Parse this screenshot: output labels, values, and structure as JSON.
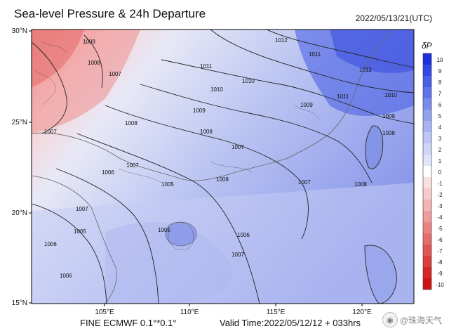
{
  "header": {
    "title": "Sea-level Pressure & 24h Departure",
    "timestamp": "2022/05/13/21(UTC)"
  },
  "axes": {
    "lat_labels": [
      "30°N",
      "25°N",
      "20°N",
      "15°N"
    ],
    "lon_labels": [
      "105°E",
      "110°E",
      "115°E",
      "120°E"
    ]
  },
  "isobars": [
    "1012",
    "1011",
    "1010",
    "1009",
    "1008",
    "1007",
    "1006",
    "1005"
  ],
  "colorbar": {
    "title": "δP",
    "ticks": [
      "10",
      "9",
      "8",
      "7",
      "6",
      "5",
      "4",
      "3",
      "2",
      "1",
      "0",
      "-1",
      "-2",
      "-3",
      "-4",
      "-5",
      "-6",
      "-7",
      "-8",
      "-9",
      "-10"
    ],
    "colors": [
      "#1b2ee0",
      "#3147e6",
      "#4a5fe8",
      "#6074ea",
      "#7a8bed",
      "#93a2f0",
      "#a8b4f2",
      "#bcc5f5",
      "#cfd6f7",
      "#e1e5fa",
      "#ffffff",
      "#fbe0e0",
      "#f7cbcb",
      "#f3b3b3",
      "#ef9c9c",
      "#ea8484",
      "#e66c6c",
      "#e15555",
      "#dc3e3e",
      "#d62828",
      "#d01111"
    ]
  },
  "footer": {
    "model": "FINE ECMWF 0.1°*0.1°",
    "valid_time": "Valid Time:2022/05/12/12 + 033hrs"
  },
  "watermark": {
    "text": "@珠海天气",
    "icon": "weibo-icon"
  }
}
